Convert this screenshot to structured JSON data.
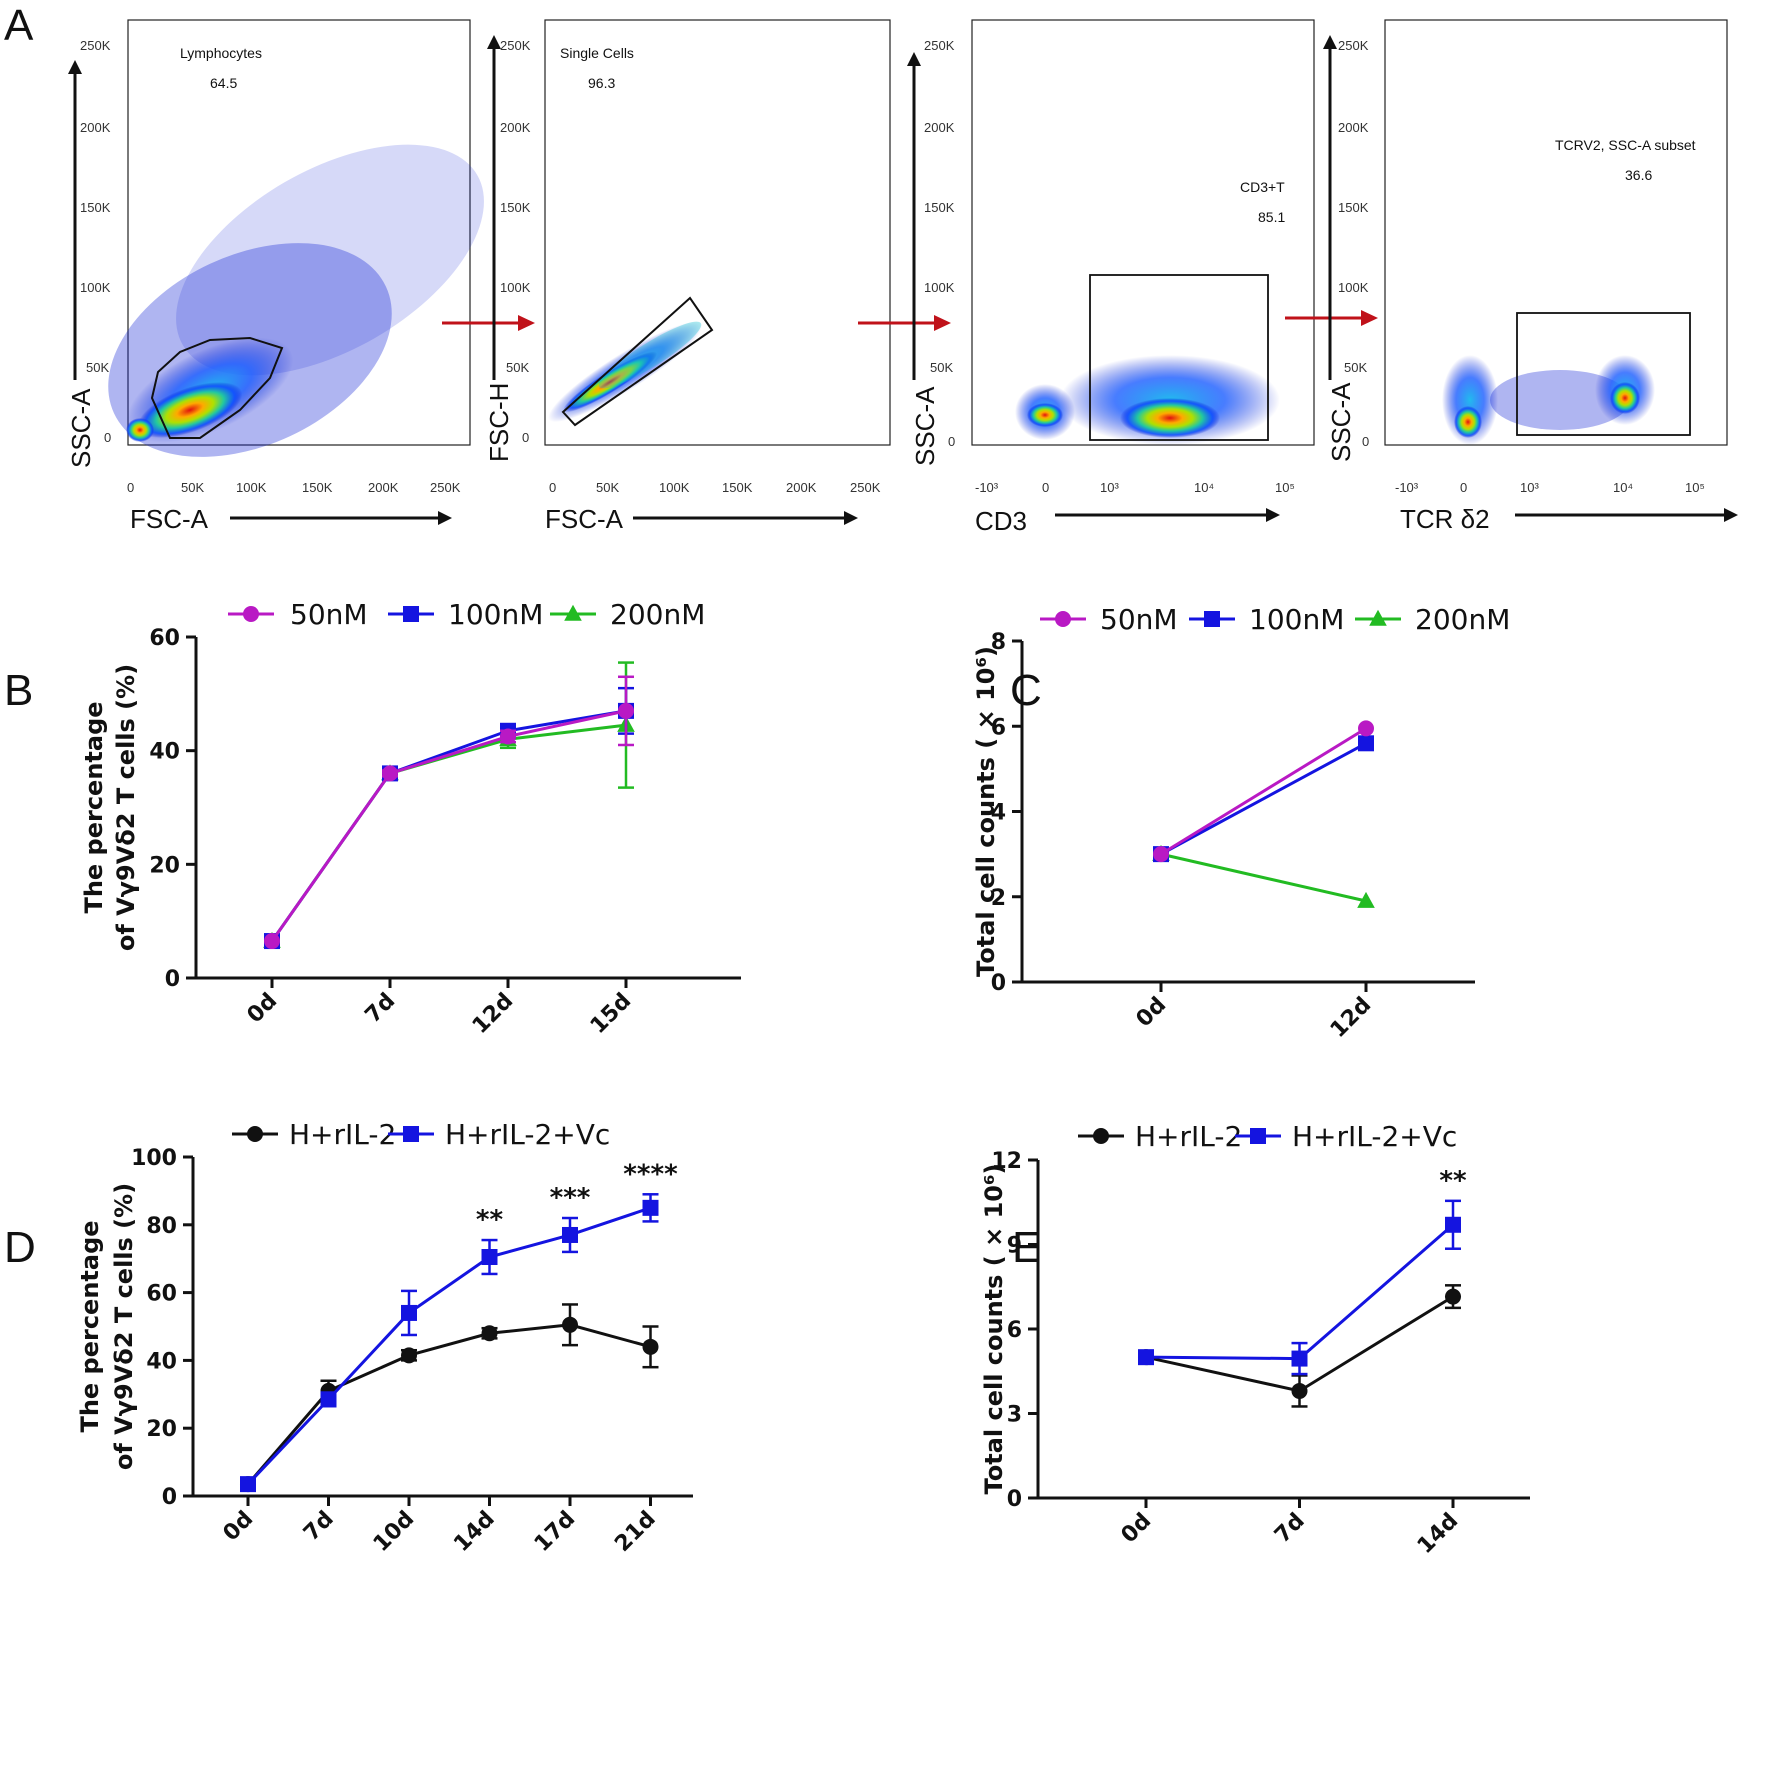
{
  "panel_letters": [
    "A",
    "B",
    "C",
    "D",
    "E"
  ],
  "flow_panels": [
    {
      "id": "fsc-ssc",
      "x_label": "FSC-A",
      "y_label": "SSC-A",
      "x_ticks": [
        "0",
        "50K",
        "100K",
        "150K",
        "200K",
        "250K"
      ],
      "y_ticks": [
        "0",
        "50K",
        "100K",
        "150K",
        "200K",
        "250K"
      ],
      "gate_name": "Lymphocytes",
      "gate_value": "64.5"
    },
    {
      "id": "fsc-single",
      "x_label": "FSC-A",
      "y_label": "FSC-H",
      "x_ticks": [
        "0",
        "50K",
        "100K",
        "150K",
        "200K",
        "250K"
      ],
      "y_ticks": [
        "0",
        "50K",
        "100K",
        "150K",
        "200K",
        "250K"
      ],
      "gate_name": "Single Cells",
      "gate_value": "96.3"
    },
    {
      "id": "cd3",
      "x_label": "CD3",
      "y_label": "SSC-A",
      "x_ticks": [
        "-10³",
        "0",
        "10³",
        "10⁴",
        "10⁵"
      ],
      "y_ticks": [
        "0",
        "50K",
        "100K",
        "150K",
        "200K",
        "250K"
      ],
      "gate_name": "CD3+T",
      "gate_value": "85.1"
    },
    {
      "id": "tcr",
      "x_label": "TCR δ2",
      "y_label": "SSC-A",
      "x_ticks": [
        "-10³",
        "0",
        "10³",
        "10⁴",
        "10⁵"
      ],
      "y_ticks": [
        "0",
        "50K",
        "100K",
        "150K",
        "200K",
        "250K"
      ],
      "gate_name": "TCRV2, SSC-A subset",
      "gate_value": "36.6"
    }
  ],
  "colors": {
    "magenta": "#b919c4",
    "blue": "#1414e0",
    "green": "#22bb22",
    "black": "#111111",
    "arrow_red": "#c0121a"
  },
  "chart_data": [
    {
      "panel": "B",
      "type": "line",
      "categories": [
        "0d",
        "7d",
        "12d",
        "15d"
      ],
      "ylabel_line1": "The percentage",
      "ylabel_line2": "of Vγ9Vδ2 T cells (%)",
      "ylim": [
        0,
        60
      ],
      "yticks": [
        0,
        20,
        40,
        60
      ],
      "legend_labels": [
        "50nM",
        "100nM",
        "200nM"
      ],
      "series": [
        {
          "name": "200nM",
          "marker": "triangle",
          "values": [
            6.5,
            36,
            42,
            44.5
          ],
          "errors": [
            0,
            0.5,
            1.5,
            11
          ]
        },
        {
          "name": "100nM",
          "marker": "square",
          "values": [
            6.5,
            36,
            43.5,
            47
          ],
          "errors": [
            0,
            0.5,
            1,
            4
          ]
        },
        {
          "name": "50nM",
          "marker": "circle",
          "values": [
            6.5,
            36,
            42.5,
            47
          ],
          "errors": [
            0,
            0.5,
            1,
            6
          ]
        }
      ]
    },
    {
      "panel": "C",
      "type": "line",
      "categories": [
        "0d",
        "12d"
      ],
      "ylabel": "Total cell counts ( × 10⁶)",
      "ylim": [
        0,
        8
      ],
      "yticks": [
        0,
        2,
        4,
        6,
        8
      ],
      "legend_labels": [
        "50nM",
        "100nM",
        "200nM"
      ],
      "series": [
        {
          "name": "200nM",
          "marker": "triangle",
          "values": [
            3,
            1.9
          ],
          "errors": [
            0,
            0
          ]
        },
        {
          "name": "100nM",
          "marker": "square",
          "values": [
            3,
            5.6
          ],
          "errors": [
            0,
            0
          ]
        },
        {
          "name": "50nM",
          "marker": "circle",
          "values": [
            3,
            5.95
          ],
          "errors": [
            0,
            0
          ]
        }
      ]
    },
    {
      "panel": "D",
      "type": "line",
      "categories": [
        "0d",
        "7d",
        "10d",
        "14d",
        "17d",
        "21d"
      ],
      "ylabel_line1": "The percentage",
      "ylabel_line2": "of Vγ9Vδ2 T cells (%)",
      "ylim": [
        0,
        100
      ],
      "yticks": [
        0,
        20,
        40,
        60,
        80,
        100
      ],
      "legend_labels": [
        "H+rIL-2",
        "H+rIL-2+Vc"
      ],
      "significance": [
        "",
        "",
        "",
        "**",
        "***",
        "****"
      ],
      "series": [
        {
          "name": "H+rIL-2",
          "marker": "circle",
          "values": [
            3.5,
            31,
            41.5,
            48,
            50.5,
            44
          ],
          "errors": [
            0.5,
            3,
            1.5,
            1.5,
            6,
            6
          ]
        },
        {
          "name": "H+rIL-2+Vc",
          "marker": "square",
          "values": [
            3.5,
            28.5,
            54,
            70.5,
            77,
            85
          ],
          "errors": [
            0.5,
            2,
            6.5,
            5,
            5,
            4
          ]
        }
      ]
    },
    {
      "panel": "E",
      "type": "line",
      "categories": [
        "0d",
        "7d",
        "14d"
      ],
      "ylabel": "Total cell counts ( × 10⁶)",
      "ylim": [
        0,
        12
      ],
      "yticks": [
        0,
        3,
        6,
        9,
        12
      ],
      "legend_labels": [
        "H+rIL-2",
        "H+rIL-2+Vc"
      ],
      "significance": [
        "",
        "",
        "**"
      ],
      "series": [
        {
          "name": "H+rIL-2",
          "marker": "circle",
          "values": [
            5,
            3.8,
            7.15
          ],
          "errors": [
            0.1,
            0.55,
            0.4
          ]
        },
        {
          "name": "H+rIL-2+Vc",
          "marker": "square",
          "values": [
            5,
            4.95,
            9.7
          ],
          "errors": [
            0.1,
            0.55,
            0.85
          ]
        }
      ]
    }
  ]
}
